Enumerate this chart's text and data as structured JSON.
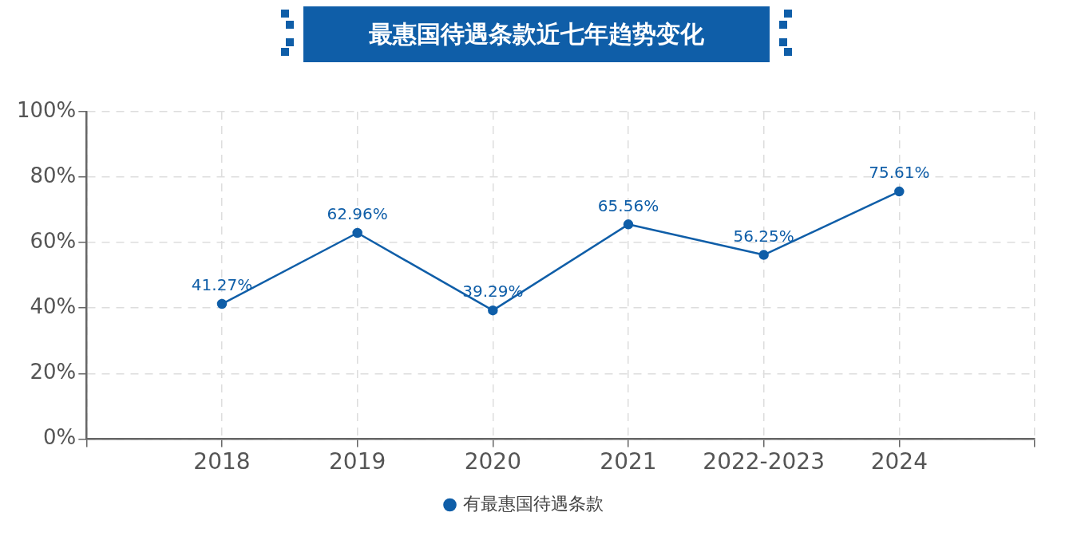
{
  "chart_data": {
    "type": "line",
    "title": "最惠国待遇条款近七年趋势变化",
    "categories": [
      null,
      "2018",
      "2019",
      "2020",
      "2021",
      "2022-2023",
      "2024",
      null
    ],
    "series": [
      {
        "name": "有最惠国待遇条款",
        "color": "#0f5ea8",
        "values": [
          null,
          41.27,
          62.96,
          39.29,
          65.56,
          56.25,
          75.61,
          null
        ]
      }
    ],
    "ylim": [
      0,
      100
    ],
    "yticks": [
      {
        "value": 0,
        "label": "0%"
      },
      {
        "value": 20,
        "label": "20%"
      },
      {
        "value": 40,
        "label": "40%"
      },
      {
        "value": 60,
        "label": "60%"
      },
      {
        "value": 80,
        "label": "80%"
      },
      {
        "value": 100,
        "label": "100%"
      }
    ],
    "value_labels": [
      null,
      "41.27%",
      "62.96%",
      "39.29%",
      "65.56%",
      "56.25%",
      "75.61%",
      null
    ],
    "grid": true,
    "legend": "bottom",
    "marker": "circle",
    "line_style": "solid"
  }
}
